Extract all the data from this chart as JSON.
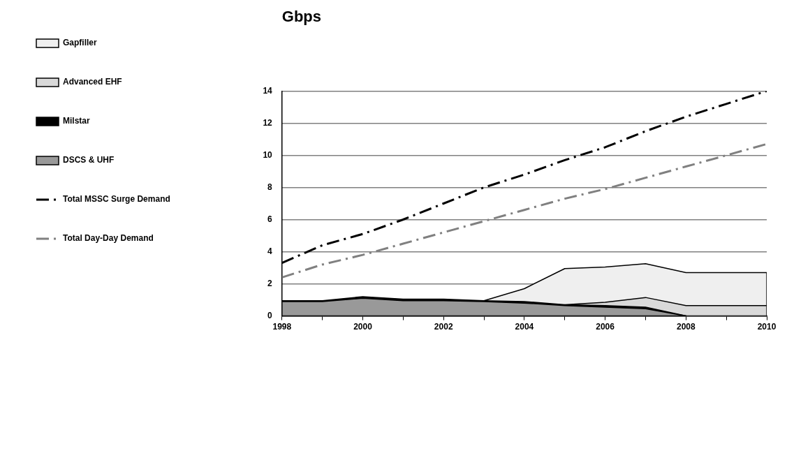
{
  "chart_data": {
    "type": "area",
    "ylabel": "Gbps",
    "stacked": true,
    "legend": "left",
    "grid": "y",
    "line_style": "dashed",
    "x": [
      1998,
      1999,
      2000,
      2001,
      2002,
      2003,
      2004,
      2005,
      2006,
      2007,
      2008,
      2009,
      2010
    ],
    "xlim": [
      1998,
      2010
    ],
    "xticks": [
      1998,
      {
        "value": 1999,
        "label": null
      },
      2000,
      {
        "value": 2001,
        "label": null
      },
      2002,
      {
        "value": 2003,
        "label": null
      },
      2004,
      {
        "value": 2005,
        "label": null
      },
      2006,
      {
        "value": 2007,
        "label": null
      },
      2008,
      {
        "value": 2009,
        "label": null
      },
      2010
    ],
    "ylim": [
      0,
      14
    ],
    "yticks": [
      0,
      2,
      4,
      6,
      8,
      10,
      12,
      14
    ],
    "series": [
      {
        "name": "DSCS & UHF",
        "type": "area",
        "color": "#999999",
        "values": [
          0.9,
          0.9,
          1.1,
          0.95,
          0.95,
          0.9,
          0.8,
          0.65,
          0.55,
          0.45,
          0,
          null,
          null
        ]
      },
      {
        "name": "Milstar",
        "type": "area",
        "color": "#000000",
        "values": [
          0.05,
          0.05,
          0.1,
          0.1,
          0.1,
          0.05,
          0.1,
          0.05,
          0.1,
          0.1,
          0,
          null,
          null
        ]
      },
      {
        "name": "Advanced EHF",
        "type": "area",
        "color": "#d9d9d9",
        "values": [
          null,
          null,
          null,
          null,
          null,
          null,
          null,
          0,
          0.2,
          0.6,
          0.65,
          0.65,
          0.65
        ]
      },
      {
        "name": "Gapfiller",
        "color": "#efefef",
        "values": [
          null,
          null,
          null,
          null,
          null,
          0,
          0.8,
          2.25,
          2.2,
          2.1,
          2.05,
          2.05,
          2.05
        ]
      },
      {
        "name": "Total MSSC Surge Demand",
        "type": "line",
        "color": "#000000",
        "values": [
          3.3,
          4.4,
          5.1,
          6.0,
          7.0,
          8.0,
          8.8,
          9.7,
          10.5,
          11.5,
          12.4,
          13.2,
          14.0
        ]
      },
      {
        "name": "Total Day-Day Demand",
        "type": "line",
        "color": "#808080",
        "values": [
          2.4,
          3.2,
          3.8,
          4.5,
          5.2,
          5.9,
          6.6,
          7.3,
          7.9,
          8.6,
          9.3,
          10.0,
          10.7
        ]
      }
    ]
  }
}
